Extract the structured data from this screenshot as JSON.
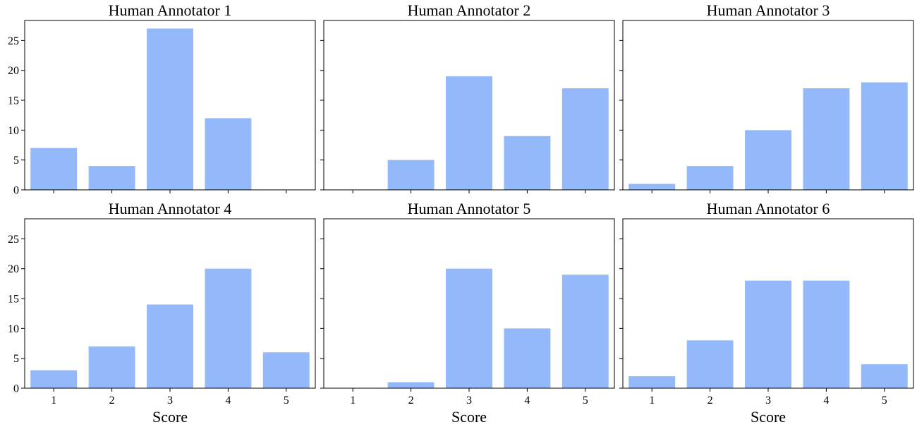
{
  "chart_data": [
    {
      "type": "bar",
      "title": "Human Annotator 1",
      "categories": [
        "1",
        "2",
        "3",
        "4",
        "5"
      ],
      "values": [
        7,
        4,
        27,
        12,
        0
      ],
      "xlabel": "",
      "ylabel": "",
      "ylim": [
        0,
        28.35
      ],
      "yticks": [
        "0",
        "5",
        "10",
        "15",
        "20",
        "25"
      ]
    },
    {
      "type": "bar",
      "title": "Human Annotator 2",
      "categories": [
        "1",
        "2",
        "3",
        "4",
        "5"
      ],
      "values": [
        0,
        5,
        19,
        9,
        17
      ],
      "xlabel": "",
      "ylabel": "",
      "ylim": [
        0,
        28.35
      ]
    },
    {
      "type": "bar",
      "title": "Human Annotator 3",
      "categories": [
        "1",
        "2",
        "3",
        "4",
        "5"
      ],
      "values": [
        1,
        4,
        10,
        17,
        18
      ],
      "xlabel": "",
      "ylabel": "",
      "ylim": [
        0,
        28.35
      ]
    },
    {
      "type": "bar",
      "title": "Human Annotator 4",
      "categories": [
        "1",
        "2",
        "3",
        "4",
        "5"
      ],
      "values": [
        3,
        7,
        14,
        20,
        6
      ],
      "xlabel": "Score",
      "ylabel": "",
      "ylim": [
        0,
        28.35
      ],
      "yticks": [
        "0",
        "5",
        "10",
        "15",
        "20",
        "25"
      ]
    },
    {
      "type": "bar",
      "title": "Human Annotator 5",
      "categories": [
        "1",
        "2",
        "3",
        "4",
        "5"
      ],
      "values": [
        0,
        1,
        20,
        10,
        19
      ],
      "xlabel": "Score",
      "ylabel": "",
      "ylim": [
        0,
        28.35
      ]
    },
    {
      "type": "bar",
      "title": "Human Annotator 6",
      "categories": [
        "1",
        "2",
        "3",
        "4",
        "5"
      ],
      "values": [
        2,
        8,
        18,
        18,
        4
      ],
      "xlabel": "Score",
      "ylabel": "",
      "ylim": [
        0,
        28.35
      ]
    }
  ],
  "colors": {
    "bar": "#93b9fb",
    "axis": "#000000"
  },
  "grid": false,
  "sharey": true,
  "sharex": true
}
